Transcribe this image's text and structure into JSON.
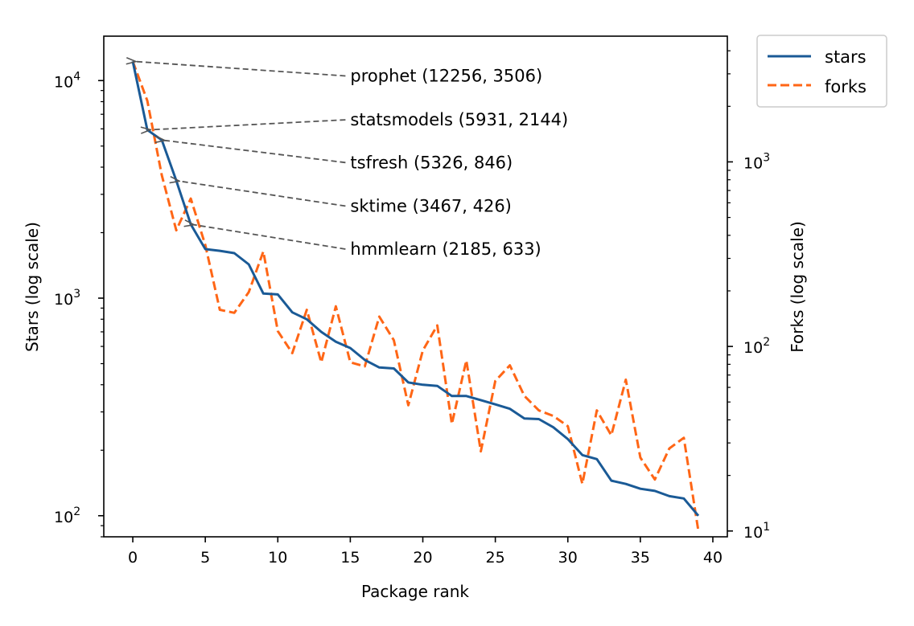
{
  "chart_data": {
    "type": "line",
    "xlabel": "Package rank",
    "ylabel_left": "Stars (log scale)",
    "ylabel_right": "Forks (log scale)",
    "xlim": [
      -2,
      41
    ],
    "xticks": [
      0,
      5,
      10,
      15,
      20,
      25,
      30,
      35,
      40
    ],
    "left_axis": {
      "scale": "log",
      "lim": [
        80,
        16000
      ],
      "major_ticks": [
        100,
        1000,
        10000
      ]
    },
    "right_axis": {
      "scale": "log",
      "lim": [
        9.3,
        4800
      ],
      "major_ticks": [
        10,
        100,
        1000
      ]
    },
    "grid": false,
    "legend": {
      "placement": "outside upper right"
    },
    "x": [
      0,
      1,
      2,
      3,
      4,
      5,
      6,
      7,
      8,
      9,
      10,
      11,
      12,
      13,
      14,
      15,
      16,
      17,
      18,
      19,
      20,
      21,
      22,
      23,
      24,
      25,
      26,
      27,
      28,
      29,
      30,
      31,
      32,
      33,
      34,
      35,
      36,
      37,
      38,
      39
    ],
    "series": [
      {
        "name": "stars",
        "axis": "left",
        "color": "#1a5a96",
        "style": "solid",
        "values": [
          12256,
          5931,
          5326,
          3467,
          2185,
          1680,
          1650,
          1610,
          1430,
          1050,
          1040,
          860,
          800,
          700,
          630,
          590,
          520,
          480,
          475,
          410,
          400,
          395,
          355,
          355,
          340,
          325,
          310,
          280,
          278,
          255,
          225,
          190,
          182,
          145,
          140,
          133,
          130,
          123,
          120,
          100
        ]
      },
      {
        "name": "forks",
        "axis": "right",
        "color": "#ff6616",
        "style": "dashed",
        "values": [
          3506,
          2144,
          846,
          426,
          633,
          354,
          158,
          152,
          197,
          327,
          121,
          92,
          158,
          82,
          165,
          82,
          78,
          145,
          108,
          48,
          95,
          130,
          38,
          84,
          27,
          65,
          79,
          54,
          45,
          42,
          37,
          18,
          45,
          33,
          66,
          25,
          19,
          28,
          32,
          10
        ]
      }
    ],
    "annotations": [
      {
        "label": "prophet (12256, 3506)",
        "x": 0,
        "stars": 12256,
        "text_y": 10500
      },
      {
        "label": "statsmodels (5931, 2144)",
        "x": 1,
        "stars": 5931,
        "text_y": 6600
      },
      {
        "label": "tsfresh (5326, 846)",
        "x": 2,
        "stars": 5326,
        "text_y": 4200
      },
      {
        "label": "sktime (3467, 426)",
        "x": 3,
        "stars": 3467,
        "text_y": 2650
      },
      {
        "label": "hmmlearn (2185, 633)",
        "x": 4,
        "stars": 2185,
        "text_y": 1680
      }
    ],
    "annotation_text_x": 15
  }
}
